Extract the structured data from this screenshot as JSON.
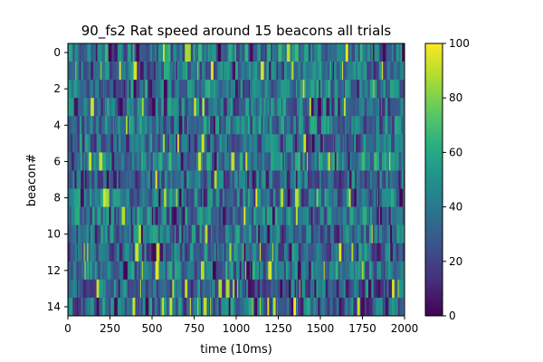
{
  "chart_data": {
    "type": "heatmap",
    "title": "90_fs2 Rat speed around 15 beacons all trials",
    "xlabel": "time (10ms)",
    "ylabel": "beacon#",
    "xlim": [
      0,
      2000
    ],
    "ylim": [
      14.5,
      -0.5
    ],
    "rows": 15,
    "columns": 2000,
    "x_ticks": [
      0,
      250,
      500,
      750,
      1000,
      1250,
      1500,
      1750,
      2000
    ],
    "x_tick_labels": [
      "0",
      "250",
      "500",
      "750",
      "1000",
      "1250",
      "1500",
      "1750",
      "2000"
    ],
    "y_ticks": [
      0,
      2,
      4,
      6,
      8,
      10,
      12,
      14
    ],
    "y_tick_labels": [
      "0",
      "2",
      "4",
      "6",
      "8",
      "10",
      "12",
      "14"
    ],
    "colormap": "viridis",
    "color_range": [
      0,
      100
    ],
    "colorbar_ticks": [
      0,
      20,
      40,
      60,
      80,
      100
    ],
    "colorbar_tick_labels": [
      "0",
      "20",
      "40",
      "60",
      "80",
      "100"
    ],
    "value_note": "per-cell speeds are dense noise-like data (mostly 10-60 with sparse spikes near 100)",
    "row_mean_estimates": [
      42,
      38,
      40,
      36,
      38,
      34,
      44,
      30,
      38,
      40,
      36,
      34,
      40,
      32,
      36
    ],
    "grid": false,
    "legend": "colorbar-right"
  }
}
